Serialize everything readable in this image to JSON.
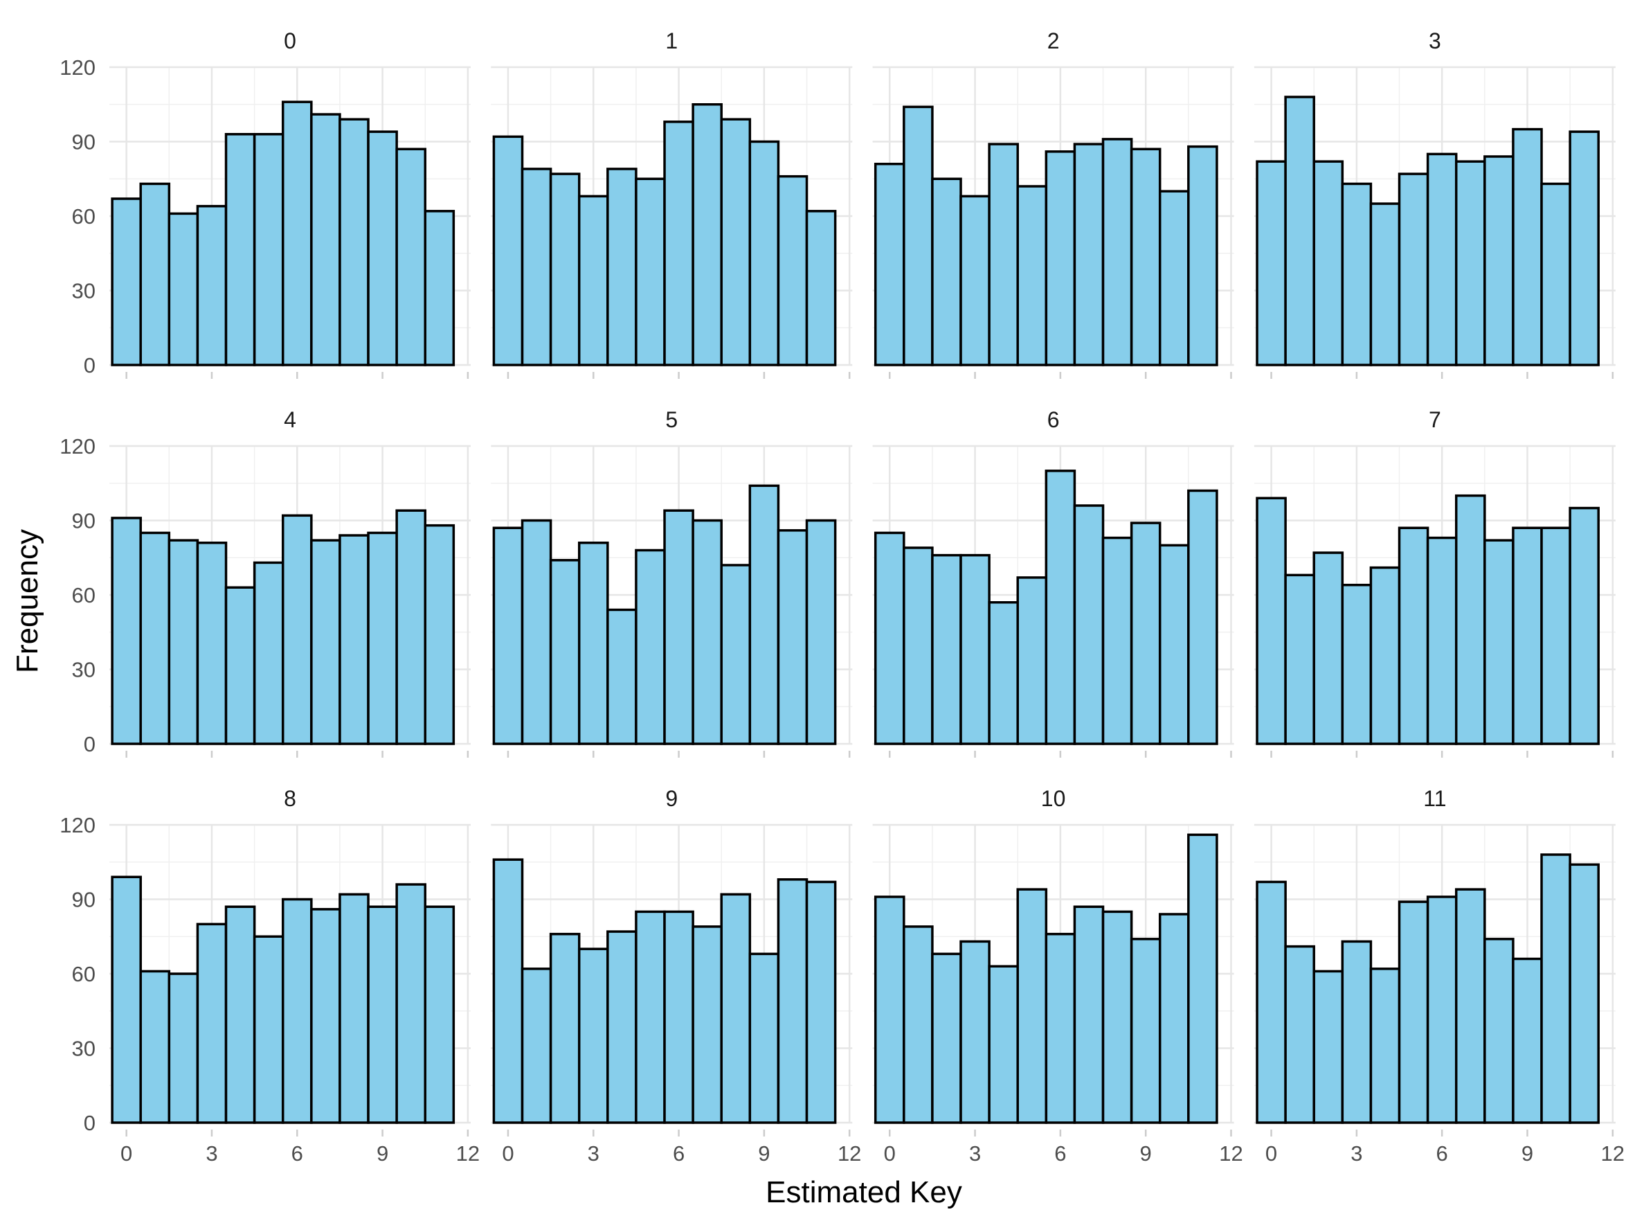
{
  "chart_data": {
    "type": "bar",
    "xlabel": "Estimated Key",
    "ylabel": "Frequency",
    "facets_grid": "3 rows x 4 columns",
    "categories": [
      0,
      1,
      2,
      3,
      4,
      5,
      6,
      7,
      8,
      9,
      10,
      11
    ],
    "x_ticks": [
      0,
      3,
      6,
      9,
      12
    ],
    "y_ticks": [
      0,
      30,
      60,
      90,
      120
    ],
    "xlim": [
      -0.6,
      12.1
    ],
    "ylim": [
      0,
      120
    ],
    "bar_fill": "#87ceeb",
    "bar_outline": "#000000",
    "grid": true,
    "facets": [
      {
        "label": "0",
        "values": [
          67,
          73,
          61,
          64,
          93,
          93,
          106,
          101,
          99,
          94,
          87,
          62
        ]
      },
      {
        "label": "1",
        "values": [
          92,
          79,
          77,
          68,
          79,
          75,
          98,
          105,
          99,
          90,
          76,
          62
        ]
      },
      {
        "label": "2",
        "values": [
          81,
          104,
          75,
          68,
          89,
          72,
          86,
          89,
          91,
          87,
          70,
          88
        ]
      },
      {
        "label": "3",
        "values": [
          82,
          108,
          82,
          73,
          65,
          77,
          85,
          82,
          84,
          95,
          73,
          94
        ]
      },
      {
        "label": "4",
        "values": [
          91,
          85,
          82,
          81,
          63,
          73,
          92,
          82,
          84,
          85,
          94,
          88
        ]
      },
      {
        "label": "5",
        "values": [
          87,
          90,
          74,
          81,
          54,
          78,
          94,
          90,
          72,
          104,
          86,
          90
        ]
      },
      {
        "label": "6",
        "values": [
          85,
          79,
          76,
          76,
          57,
          67,
          110,
          96,
          83,
          89,
          80,
          102
        ]
      },
      {
        "label": "7",
        "values": [
          99,
          68,
          77,
          64,
          71,
          87,
          83,
          100,
          82,
          87,
          87,
          95
        ]
      },
      {
        "label": "8",
        "values": [
          99,
          61,
          60,
          80,
          87,
          75,
          90,
          86,
          92,
          87,
          96,
          87
        ]
      },
      {
        "label": "9",
        "values": [
          106,
          62,
          76,
          70,
          77,
          85,
          85,
          79,
          92,
          68,
          98,
          97
        ]
      },
      {
        "label": "10",
        "values": [
          91,
          79,
          68,
          73,
          63,
          94,
          76,
          87,
          85,
          74,
          84,
          116
        ]
      },
      {
        "label": "11",
        "values": [
          97,
          71,
          61,
          73,
          62,
          89,
          91,
          94,
          74,
          66,
          108,
          104
        ]
      }
    ]
  }
}
